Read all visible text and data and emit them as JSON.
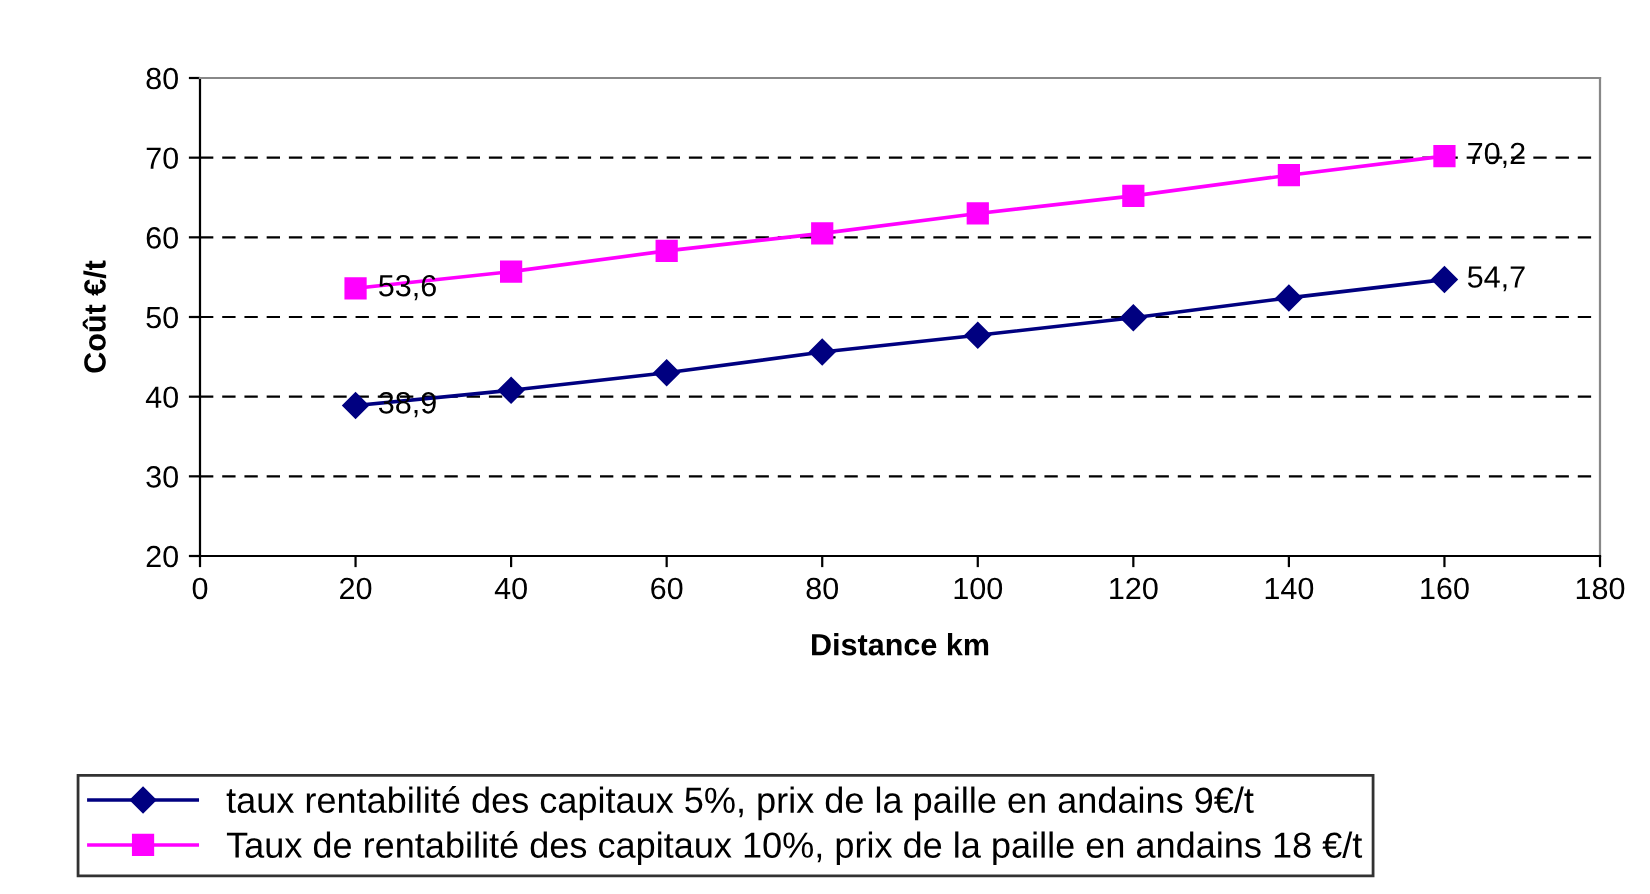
{
  "chart_data": {
    "type": "line",
    "xlabel": "Distance km",
    "ylabel": "Coût €/t",
    "x": [
      20,
      40,
      60,
      80,
      100,
      120,
      140,
      160
    ],
    "xlim": [
      0,
      180
    ],
    "xticks": [
      0,
      20,
      40,
      60,
      80,
      100,
      120,
      140,
      160,
      180
    ],
    "ylim": [
      20,
      80
    ],
    "yticks": [
      20,
      30,
      40,
      50,
      60,
      70,
      80
    ],
    "grid": "y",
    "legend": "bottom",
    "series": [
      {
        "name": "taux rentabilité des capitaux 5%, prix de la paille en andains 9€/t",
        "color": "#000080",
        "marker": "diamond",
        "values": [
          38.9,
          40.8,
          43.0,
          45.6,
          47.7,
          49.9,
          52.4,
          54.7
        ],
        "value_labels": [
          "38,9",
          null,
          null,
          null,
          null,
          null,
          null,
          "54,7"
        ]
      },
      {
        "name": "Taux de rentabilité des capitaux 10%, prix de la paille en andains 18 €/t",
        "color": "#ff00ff",
        "marker": "square",
        "values": [
          53.6,
          55.7,
          58.3,
          60.5,
          63.0,
          65.2,
          67.8,
          70.2
        ],
        "value_labels": [
          "53,6",
          null,
          null,
          null,
          null,
          null,
          null,
          "70,2"
        ]
      }
    ]
  }
}
